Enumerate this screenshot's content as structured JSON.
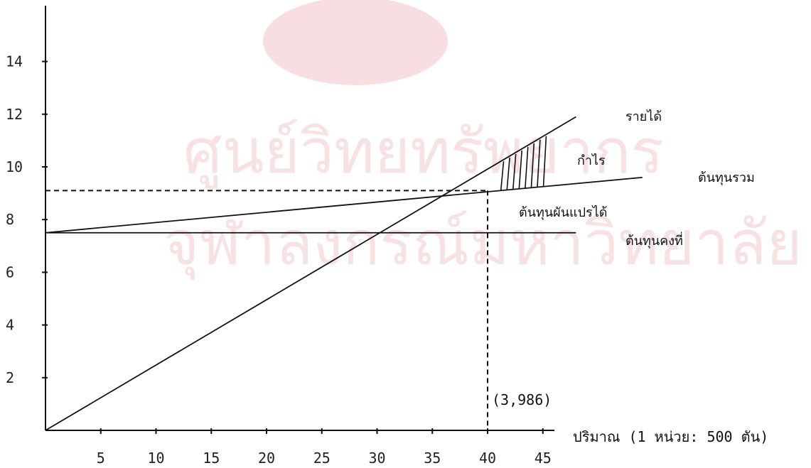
{
  "chart_data": {
    "type": "line",
    "xlabel": "ปริมาณ (1 หน่วย: 500 ตัน)",
    "ylabel": "",
    "title": "",
    "xlim": [
      0,
      48
    ],
    "ylim": [
      0,
      15.5
    ],
    "x_ticks": [
      5,
      10,
      15,
      20,
      25,
      30,
      35,
      40,
      45
    ],
    "y_ticks": [
      2,
      4,
      6,
      8,
      10,
      12,
      14
    ],
    "grid": false,
    "series": [
      {
        "name": "รายได้",
        "x": [
          0,
          48
        ],
        "y": [
          0,
          11.9
        ]
      },
      {
        "name": "ต้นทุนรวม",
        "x": [
          0,
          54
        ],
        "y": [
          7.5,
          9.6
        ]
      },
      {
        "name": "ต้นทุนคงที่",
        "x": [
          0,
          48
        ],
        "y": [
          7.5,
          7.5
        ]
      }
    ],
    "break_even": {
      "x": 40,
      "y": 9.1
    },
    "annotations": {
      "profit": "กำไร",
      "variable_cost": "ต้นทุนผันแปรได้",
      "break_even_label": "(3,986)"
    }
  },
  "watermark": {
    "line1": "ศูนย์วิทยทรัพยากร",
    "line2": "จุฬาลงกรณ์มหาวิทยาลัย"
  }
}
